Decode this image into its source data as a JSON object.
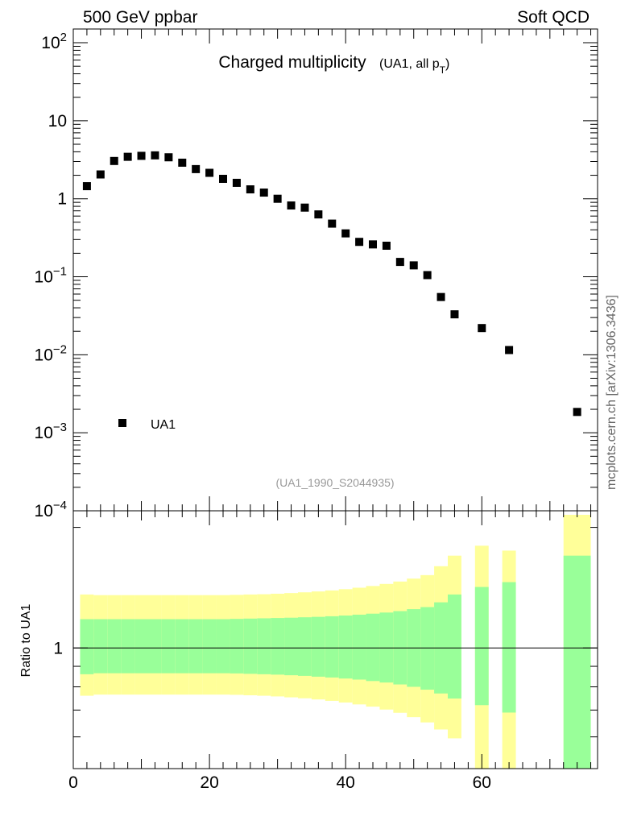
{
  "header": {
    "left": "500 GeV ppbar",
    "right": "Soft QCD"
  },
  "side_label": "mcplots.cern.ch [arXiv:1306.3436]",
  "chart_data": [
    {
      "type": "scatter",
      "title": "Charged multiplicity",
      "subtitle": "(UA1, all p",
      "subtitle_sub": "T",
      "subtitle_end": ")",
      "watermark": "(UA1_1990_S2044935)",
      "xlim": [
        0,
        77
      ],
      "ylim": [
        0.0001,
        150
      ],
      "yscale": "log",
      "y_ticks": [
        {
          "value": 100,
          "base": "10",
          "exp": "2"
        },
        {
          "value": 10,
          "base": "10",
          "exp": ""
        },
        {
          "value": 1,
          "base": "1",
          "exp": ""
        },
        {
          "value": 0.1,
          "base": "10",
          "exp": "−1"
        },
        {
          "value": 0.01,
          "base": "10",
          "exp": "−2"
        },
        {
          "value": 0.001,
          "base": "10",
          "exp": "−3"
        },
        {
          "value": 0.0001,
          "base": "10",
          "exp": "−4"
        }
      ],
      "legend": {
        "position": "bottom-left",
        "entries": [
          "UA1"
        ]
      },
      "series": [
        {
          "name": "UA1",
          "color": "#000000",
          "x": [
            2,
            4,
            6,
            8,
            10,
            12,
            14,
            16,
            18,
            20,
            22,
            24,
            26,
            28,
            30,
            32,
            34,
            36,
            38,
            40,
            42,
            44,
            46,
            48,
            50,
            52,
            54,
            56,
            60,
            64,
            74
          ],
          "y": [
            1.45,
            2.05,
            3.05,
            3.45,
            3.55,
            3.6,
            3.4,
            2.9,
            2.4,
            2.15,
            1.8,
            1.6,
            1.32,
            1.2,
            1.0,
            0.82,
            0.77,
            0.63,
            0.48,
            0.36,
            0.28,
            0.26,
            0.25,
            0.155,
            0.14,
            0.105,
            0.055,
            0.033,
            0.022,
            0.0115,
            0.00185
          ]
        }
      ]
    },
    {
      "type": "area",
      "ylabel": "Ratio to UA1",
      "xlim": [
        0,
        77
      ],
      "ylim": [
        0.5,
        2.2
      ],
      "y_tick_labels": [
        {
          "value": 1,
          "label": "1"
        }
      ],
      "x_tick_labels": [
        {
          "value": 0,
          "label": "0"
        },
        {
          "value": 20,
          "label": "20"
        },
        {
          "value": 40,
          "label": "40"
        },
        {
          "value": 60,
          "label": "60"
        }
      ],
      "reference_line": 1,
      "band_colors": {
        "outer": "#ffff99",
        "inner": "#99ff99"
      },
      "bands": [
        {
          "x0": 1,
          "x1": 3,
          "outer": [
            0.76,
            1.36
          ],
          "inner": [
            0.86,
            1.18
          ]
        },
        {
          "x0": 3,
          "x1": 5,
          "outer": [
            0.765,
            1.355
          ],
          "inner": [
            0.865,
            1.18
          ]
        },
        {
          "x0": 5,
          "x1": 7,
          "outer": [
            0.765,
            1.355
          ],
          "inner": [
            0.865,
            1.18
          ]
        },
        {
          "x0": 7,
          "x1": 9,
          "outer": [
            0.765,
            1.355
          ],
          "inner": [
            0.865,
            1.18
          ]
        },
        {
          "x0": 9,
          "x1": 11,
          "outer": [
            0.765,
            1.355
          ],
          "inner": [
            0.865,
            1.18
          ]
        },
        {
          "x0": 11,
          "x1": 13,
          "outer": [
            0.765,
            1.355
          ],
          "inner": [
            0.865,
            1.18
          ]
        },
        {
          "x0": 13,
          "x1": 15,
          "outer": [
            0.765,
            1.355
          ],
          "inner": [
            0.865,
            1.18
          ]
        },
        {
          "x0": 15,
          "x1": 17,
          "outer": [
            0.765,
            1.355
          ],
          "inner": [
            0.865,
            1.18
          ]
        },
        {
          "x0": 17,
          "x1": 19,
          "outer": [
            0.765,
            1.355
          ],
          "inner": [
            0.865,
            1.18
          ]
        },
        {
          "x0": 19,
          "x1": 21,
          "outer": [
            0.765,
            1.355
          ],
          "inner": [
            0.865,
            1.18
          ]
        },
        {
          "x0": 21,
          "x1": 23,
          "outer": [
            0.765,
            1.355
          ],
          "inner": [
            0.865,
            1.18
          ]
        },
        {
          "x0": 23,
          "x1": 25,
          "outer": [
            0.764,
            1.357
          ],
          "inner": [
            0.864,
            1.182
          ]
        },
        {
          "x0": 25,
          "x1": 27,
          "outer": [
            0.762,
            1.36
          ],
          "inner": [
            0.862,
            1.184
          ]
        },
        {
          "x0": 27,
          "x1": 29,
          "outer": [
            0.76,
            1.362
          ],
          "inner": [
            0.86,
            1.186
          ]
        },
        {
          "x0": 29,
          "x1": 31,
          "outer": [
            0.757,
            1.366
          ],
          "inner": [
            0.858,
            1.188
          ]
        },
        {
          "x0": 31,
          "x1": 33,
          "outer": [
            0.753,
            1.371
          ],
          "inner": [
            0.855,
            1.19
          ]
        },
        {
          "x0": 33,
          "x1": 35,
          "outer": [
            0.749,
            1.377
          ],
          "inner": [
            0.852,
            1.193
          ]
        },
        {
          "x0": 35,
          "x1": 37,
          "outer": [
            0.744,
            1.384
          ],
          "inner": [
            0.848,
            1.196
          ]
        },
        {
          "x0": 37,
          "x1": 39,
          "outer": [
            0.738,
            1.392
          ],
          "inner": [
            0.844,
            1.2
          ]
        },
        {
          "x0": 39,
          "x1": 41,
          "outer": [
            0.731,
            1.402
          ],
          "inner": [
            0.839,
            1.205
          ]
        },
        {
          "x0": 41,
          "x1": 43,
          "outer": [
            0.723,
            1.414
          ],
          "inner": [
            0.834,
            1.211
          ]
        },
        {
          "x0": 43,
          "x1": 45,
          "outer": [
            0.714,
            1.428
          ],
          "inner": [
            0.827,
            1.218
          ]
        },
        {
          "x0": 45,
          "x1": 47,
          "outer": [
            0.702,
            1.445
          ],
          "inner": [
            0.82,
            1.226
          ]
        },
        {
          "x0": 47,
          "x1": 49,
          "outer": [
            0.689,
            1.465
          ],
          "inner": [
            0.811,
            1.236
          ]
        },
        {
          "x0": 49,
          "x1": 51,
          "outer": [
            0.672,
            1.49
          ],
          "inner": [
            0.8,
            1.25
          ]
        },
        {
          "x0": 51,
          "x1": 53,
          "outer": [
            0.652,
            1.52
          ],
          "inner": [
            0.787,
            1.265
          ]
        },
        {
          "x0": 53,
          "x1": 55,
          "outer": [
            0.626,
            1.6
          ],
          "inner": [
            0.77,
            1.3
          ]
        },
        {
          "x0": 55,
          "x1": 57,
          "outer": [
            0.595,
            1.7
          ],
          "inner": [
            0.748,
            1.36
          ]
        },
        {
          "x0": 59,
          "x1": 61,
          "outer": [
            0.5,
            1.8
          ],
          "inner": [
            0.72,
            1.42
          ]
        },
        {
          "x0": 63,
          "x1": 65,
          "outer": [
            0.5,
            1.75
          ],
          "inner": [
            0.69,
            1.46
          ]
        },
        {
          "x0": 72,
          "x1": 76,
          "outer": [
            0.5,
            2.15
          ],
          "inner": [
            0.5,
            1.7
          ]
        }
      ]
    }
  ]
}
